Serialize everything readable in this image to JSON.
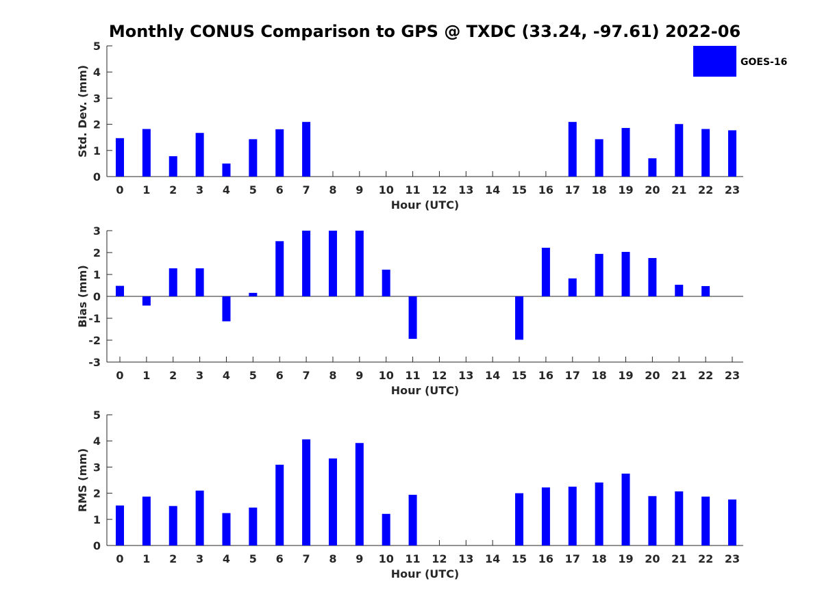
{
  "chart_data": {
    "type": "bar",
    "title": "Monthly CONUS Comparison to GPS @ TXDC (33.24, -97.61) 2022-06",
    "legend": {
      "entries": [
        "GOES-16"
      ],
      "placement": "top-right"
    },
    "bar_color": "#0000ff",
    "grid": false,
    "categories": [
      "0",
      "1",
      "2",
      "3",
      "4",
      "5",
      "6",
      "7",
      "8",
      "9",
      "10",
      "11",
      "12",
      "13",
      "14",
      "15",
      "16",
      "17",
      "18",
      "19",
      "20",
      "21",
      "22",
      "23"
    ],
    "panels": [
      {
        "xlabel": "Hour (UTC)",
        "ylabel": "Std. Dev. (mm)",
        "ylim": [
          0,
          5
        ],
        "yticks": [
          "0",
          "1",
          "2",
          "3",
          "4",
          "5"
        ],
        "series": [
          {
            "name": "GOES-16",
            "values": [
              1.47,
              1.82,
              0.78,
              1.67,
              0.5,
              1.43,
              1.81,
              2.09,
              null,
              null,
              null,
              null,
              null,
              null,
              null,
              null,
              null,
              2.09,
              1.43,
              1.86,
              0.7,
              2.01,
              1.82,
              1.77
            ]
          }
        ]
      },
      {
        "xlabel": "Hour (UTC)",
        "ylabel": "Bias (mm)",
        "ylim": [
          -3,
          3
        ],
        "yticks": [
          "-3",
          "-2",
          "-1",
          "0",
          "1",
          "2",
          "3"
        ],
        "zero_line": true,
        "series": [
          {
            "name": "GOES-16",
            "values": [
              0.48,
              -0.42,
              1.28,
              1.28,
              -1.14,
              0.16,
              2.52,
              3.0,
              3.0,
              3.0,
              1.22,
              -1.94,
              null,
              null,
              null,
              -1.98,
              2.22,
              0.82,
              1.94,
              2.03,
              1.75,
              0.53,
              0.47,
              null
            ]
          }
        ]
      },
      {
        "xlabel": "Hour (UTC)",
        "ylabel": "RMS (mm)",
        "ylim": [
          0,
          5
        ],
        "yticks": [
          "0",
          "1",
          "2",
          "3",
          "4",
          "5"
        ],
        "series": [
          {
            "name": "GOES-16",
            "values": [
              1.53,
              1.87,
              1.51,
              2.1,
              1.24,
              1.45,
              3.09,
              4.06,
              3.33,
              3.92,
              1.21,
              1.94,
              null,
              null,
              null,
              2.0,
              2.22,
              2.25,
              2.41,
              2.75,
              1.89,
              2.07,
              1.87,
              1.76
            ]
          }
        ]
      }
    ]
  }
}
